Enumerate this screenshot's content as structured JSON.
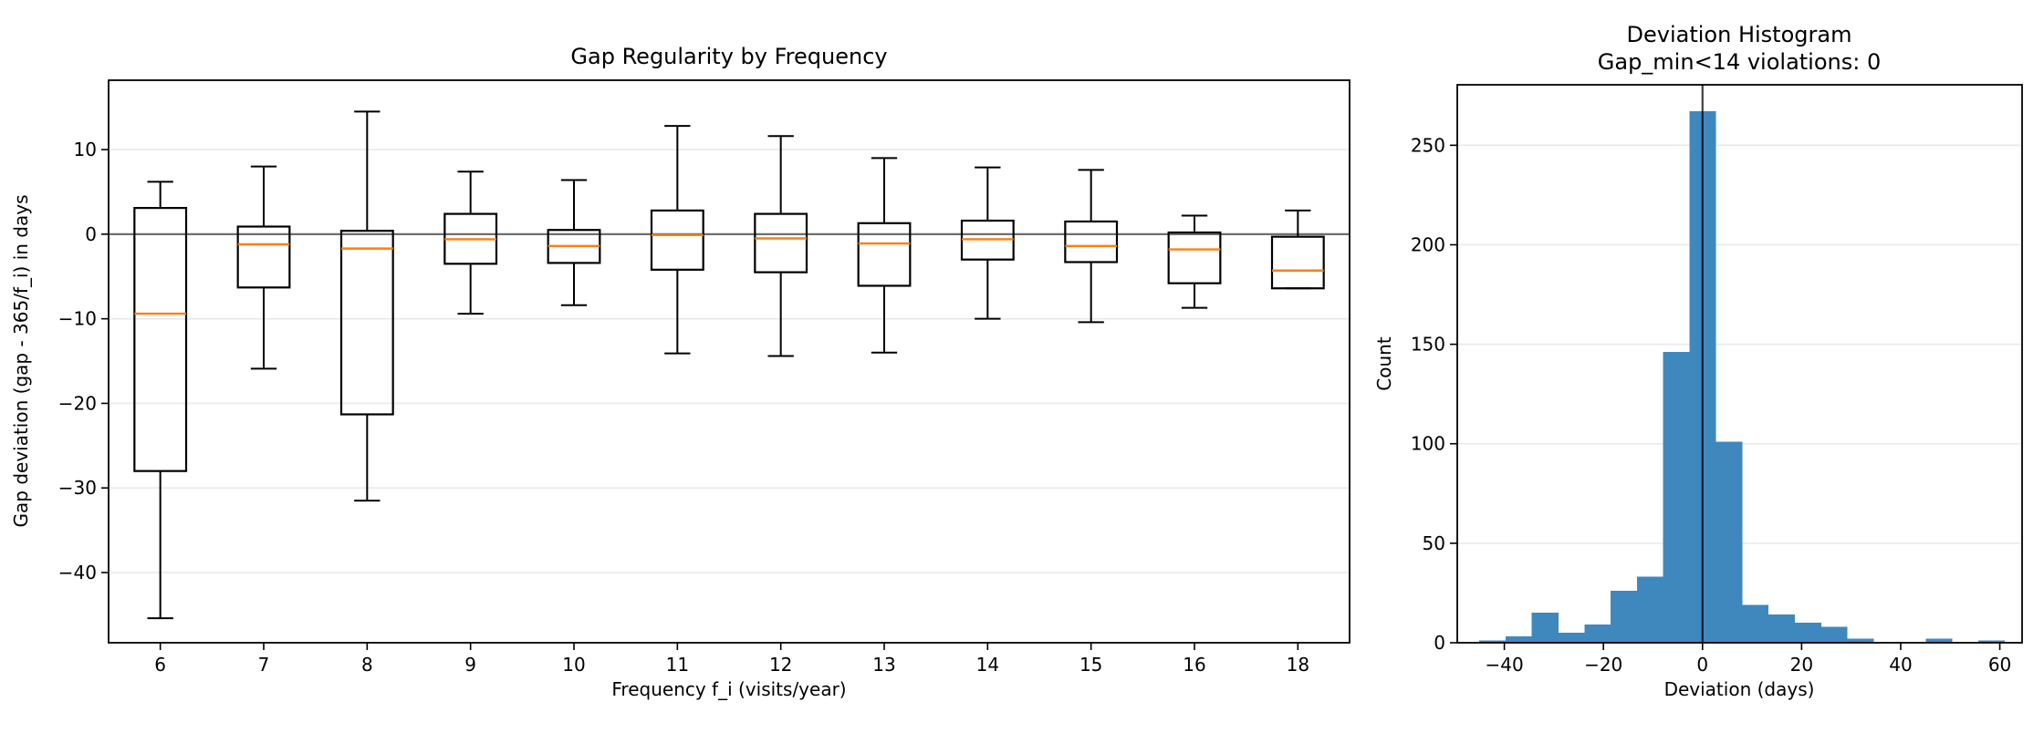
{
  "figure": {
    "background": "#ffffff"
  },
  "colors": {
    "spine": "#000000",
    "grid": "#e9e9e9",
    "zero_line": "#6e6e6e",
    "box_edge": "#000000",
    "median": "#ff7f0e",
    "bar_fill": "#3f88be",
    "vline": "#000000",
    "text": "#000000"
  },
  "chart_data": [
    {
      "type": "box",
      "title": "Gap Regularity by Frequency",
      "xlabel": "Frequency f_i (visits/year)",
      "ylabel": "Gap deviation (gap - 365/f_i) in days",
      "categories": [
        "6",
        "7",
        "8",
        "9",
        "10",
        "11",
        "12",
        "13",
        "14",
        "15",
        "16",
        "18"
      ],
      "xlim": [
        0.5,
        12.5
      ],
      "ylim": [
        -48.3,
        18.2
      ],
      "yticks": [
        10,
        0,
        -10,
        -20,
        -30,
        -40
      ],
      "ytick_labels": [
        "10",
        "0",
        "−10",
        "−20",
        "−30",
        "−40"
      ],
      "zero_line": 0,
      "grid": "horizontal",
      "box_half_width": 0.25,
      "cap_half_width": 0.125,
      "boxes": [
        {
          "category": "6",
          "whislo": -45.4,
          "q1": -28.0,
          "med": -9.4,
          "q3": 3.1,
          "whishi": 6.2
        },
        {
          "category": "7",
          "whislo": -15.9,
          "q1": -6.3,
          "med": -1.2,
          "q3": 0.9,
          "whishi": 8.0
        },
        {
          "category": "8",
          "whislo": -31.5,
          "q1": -21.3,
          "med": -1.7,
          "q3": 0.4,
          "whishi": 14.5
        },
        {
          "category": "9",
          "whislo": -9.4,
          "q1": -3.5,
          "med": -0.6,
          "q3": 2.4,
          "whishi": 7.4
        },
        {
          "category": "10",
          "whislo": -8.4,
          "q1": -3.4,
          "med": -1.4,
          "q3": 0.5,
          "whishi": 6.4
        },
        {
          "category": "11",
          "whislo": -14.1,
          "q1": -4.2,
          "med": -0.1,
          "q3": 2.8,
          "whishi": 12.8
        },
        {
          "category": "12",
          "whislo": -14.4,
          "q1": -4.5,
          "med": -0.5,
          "q3": 2.4,
          "whishi": 11.6
        },
        {
          "category": "13",
          "whislo": -14.0,
          "q1": -6.1,
          "med": -1.1,
          "q3": 1.3,
          "whishi": 9.0
        },
        {
          "category": "14",
          "whislo": -10.0,
          "q1": -3.0,
          "med": -0.6,
          "q3": 1.6,
          "whishi": 7.9
        },
        {
          "category": "15",
          "whislo": -10.4,
          "q1": -3.3,
          "med": -1.4,
          "q3": 1.5,
          "whishi": 7.6
        },
        {
          "category": "16",
          "whislo": -8.7,
          "q1": -5.8,
          "med": -1.8,
          "q3": 0.2,
          "whishi": 2.2
        },
        {
          "category": "18",
          "whislo": -6.4,
          "q1": -6.4,
          "med": -4.3,
          "q3": -0.3,
          "whishi": 2.8
        }
      ]
    },
    {
      "type": "histogram",
      "title_line1": "Deviation Histogram",
      "title_line2": "Gap_min<14 violations: 0",
      "xlabel": "Deviation (days)",
      "ylabel": "Count",
      "xlim": [
        -49.5,
        64.5
      ],
      "ylim": [
        0,
        280.4
      ],
      "xticks": [
        -40,
        -20,
        0,
        20,
        40,
        60
      ],
      "xtick_labels": [
        "−40",
        "−20",
        "0",
        "20",
        "40",
        "60"
      ],
      "yticks": [
        0,
        50,
        100,
        150,
        200,
        250
      ],
      "ytick_labels": [
        "0",
        "50",
        "100",
        "150",
        "200",
        "250"
      ],
      "grid": "horizontal",
      "vline_x": 0,
      "bin_edges": [
        -45.0,
        -39.7,
        -34.4,
        -29.1,
        -23.8,
        -18.5,
        -13.2,
        -7.9,
        -2.6,
        2.7,
        8.0,
        13.3,
        18.6,
        23.9,
        29.2,
        34.5,
        39.8,
        45.1,
        50.4,
        55.7,
        61.0
      ],
      "counts": [
        1,
        3,
        15,
        5,
        9,
        26,
        33,
        146,
        267,
        101,
        19,
        14,
        10,
        8,
        2,
        0,
        0,
        2,
        0,
        1
      ]
    }
  ]
}
